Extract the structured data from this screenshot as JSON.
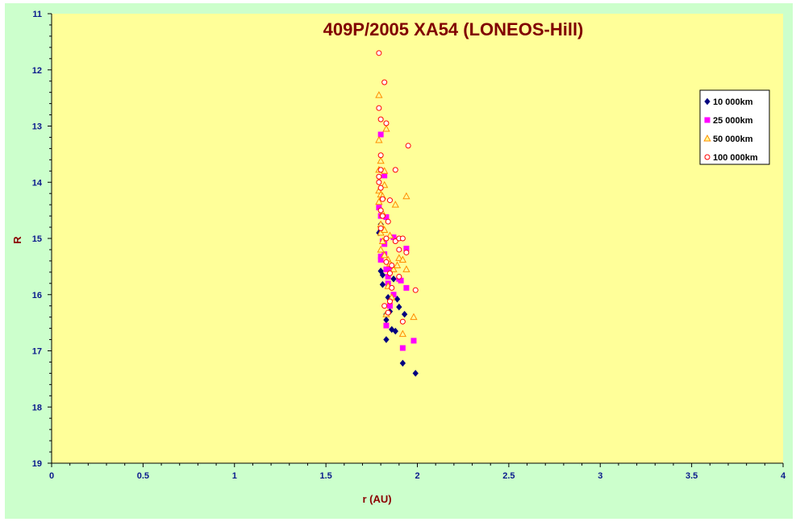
{
  "chart_data": {
    "type": "scatter",
    "title": "409P/2005 XA54 (LONEOS-Hill)",
    "xlabel": "r (AU)",
    "ylabel": "R",
    "xlim": [
      0,
      4
    ],
    "ylim": [
      11,
      19
    ],
    "y_inverted": true,
    "x_ticks": [
      "0",
      "0.5",
      "1",
      "1.5",
      "2",
      "2.5",
      "3",
      "3.5",
      "4"
    ],
    "y_ticks": [
      "11",
      "12",
      "13",
      "14",
      "15",
      "16",
      "17",
      "18",
      "19"
    ],
    "grid": false,
    "legend_position": "top-right",
    "colors": {
      "plot_background": "#ffff99",
      "chart_background": "#ccffcc",
      "series_10000": "#000080",
      "series_25000": "#ff00ff",
      "series_50000": "#ff8c00",
      "series_100000": "#ff0000"
    },
    "series": [
      {
        "name": "10 000km",
        "marker": "diamond",
        "color": "#000080",
        "points": [
          [
            1.8,
            14.75
          ],
          [
            1.8,
            14.8
          ],
          [
            1.8,
            14.85
          ],
          [
            1.79,
            14.9
          ],
          [
            1.8,
            15.58
          ],
          [
            1.81,
            15.65
          ],
          [
            1.81,
            15.82
          ],
          [
            1.84,
            16.05
          ],
          [
            1.87,
            15.72
          ],
          [
            1.89,
            16.08
          ],
          [
            1.9,
            16.22
          ],
          [
            1.85,
            16.3
          ],
          [
            1.83,
            16.35
          ],
          [
            1.83,
            16.45
          ],
          [
            1.86,
            16.62
          ],
          [
            1.88,
            16.65
          ],
          [
            1.83,
            16.8
          ],
          [
            1.92,
            17.22
          ],
          [
            1.99,
            17.4
          ],
          [
            1.93,
            16.35
          ]
        ]
      },
      {
        "name": "25 000km",
        "marker": "square",
        "color": "#ff00ff",
        "points": [
          [
            1.8,
            13.15
          ],
          [
            1.82,
            13.88
          ],
          [
            1.79,
            14.45
          ],
          [
            1.8,
            14.6
          ],
          [
            1.83,
            14.62
          ],
          [
            1.81,
            15.05
          ],
          [
            1.82,
            15.1
          ],
          [
            1.8,
            15.32
          ],
          [
            1.82,
            15.28
          ],
          [
            1.8,
            15.38
          ],
          [
            1.83,
            15.55
          ],
          [
            1.85,
            15.55
          ],
          [
            1.84,
            15.68
          ],
          [
            1.84,
            15.8
          ],
          [
            1.87,
            14.98
          ],
          [
            1.9,
            15.72
          ],
          [
            1.91,
            15.75
          ],
          [
            1.94,
            15.18
          ],
          [
            1.94,
            15.88
          ],
          [
            1.87,
            16.0
          ],
          [
            1.85,
            16.2
          ],
          [
            1.83,
            16.55
          ],
          [
            1.92,
            16.95
          ],
          [
            1.98,
            16.82
          ]
        ]
      },
      {
        "name": "50 000km",
        "marker": "triangle",
        "color": "#ff8c00",
        "points": [
          [
            1.79,
            12.45
          ],
          [
            1.83,
            13.05
          ],
          [
            1.79,
            13.25
          ],
          [
            1.8,
            13.62
          ],
          [
            1.79,
            13.78
          ],
          [
            1.82,
            13.8
          ],
          [
            1.79,
            14.15
          ],
          [
            1.8,
            14.22
          ],
          [
            1.81,
            14.25
          ],
          [
            1.79,
            14.35
          ],
          [
            1.81,
            14.55
          ],
          [
            1.8,
            14.75
          ],
          [
            1.8,
            14.9
          ],
          [
            1.82,
            14.85
          ],
          [
            1.81,
            15.05
          ],
          [
            1.8,
            15.2
          ],
          [
            1.82,
            15.3
          ],
          [
            1.85,
            14.95
          ],
          [
            1.84,
            15.38
          ],
          [
            1.85,
            15.45
          ],
          [
            1.87,
            15.55
          ],
          [
            1.89,
            15.48
          ],
          [
            1.9,
            15.35
          ],
          [
            1.92,
            15.38
          ],
          [
            1.94,
            15.55
          ],
          [
            1.84,
            15.85
          ],
          [
            1.86,
            16.05
          ],
          [
            1.83,
            16.35
          ],
          [
            1.92,
            16.7
          ],
          [
            1.98,
            16.4
          ],
          [
            1.94,
            14.25
          ],
          [
            1.88,
            14.4
          ],
          [
            1.82,
            14.05
          ]
        ]
      },
      {
        "name": "100 000km",
        "marker": "circle",
        "color": "#ff0000",
        "points": [
          [
            1.79,
            11.7
          ],
          [
            1.82,
            12.22
          ],
          [
            1.79,
            12.68
          ],
          [
            1.8,
            12.88
          ],
          [
            1.83,
            12.95
          ],
          [
            1.95,
            13.35
          ],
          [
            1.8,
            13.52
          ],
          [
            1.8,
            13.78
          ],
          [
            1.88,
            13.78
          ],
          [
            1.79,
            13.9
          ],
          [
            1.79,
            14.0
          ],
          [
            1.8,
            14.1
          ],
          [
            1.81,
            14.3
          ],
          [
            1.85,
            14.32
          ],
          [
            1.8,
            14.5
          ],
          [
            1.81,
            14.6
          ],
          [
            1.8,
            14.82
          ],
          [
            1.83,
            15.0
          ],
          [
            1.88,
            15.05
          ],
          [
            1.9,
            15.0
          ],
          [
            1.92,
            15.0
          ],
          [
            1.9,
            15.2
          ],
          [
            1.94,
            15.25
          ],
          [
            1.83,
            15.42
          ],
          [
            1.86,
            15.48
          ],
          [
            1.85,
            15.62
          ],
          [
            1.9,
            15.68
          ],
          [
            1.99,
            15.92
          ],
          [
            1.86,
            15.88
          ],
          [
            1.85,
            16.12
          ],
          [
            1.84,
            16.32
          ],
          [
            1.92,
            16.48
          ],
          [
            1.82,
            16.2
          ],
          [
            1.84,
            14.7
          ]
        ]
      }
    ]
  }
}
